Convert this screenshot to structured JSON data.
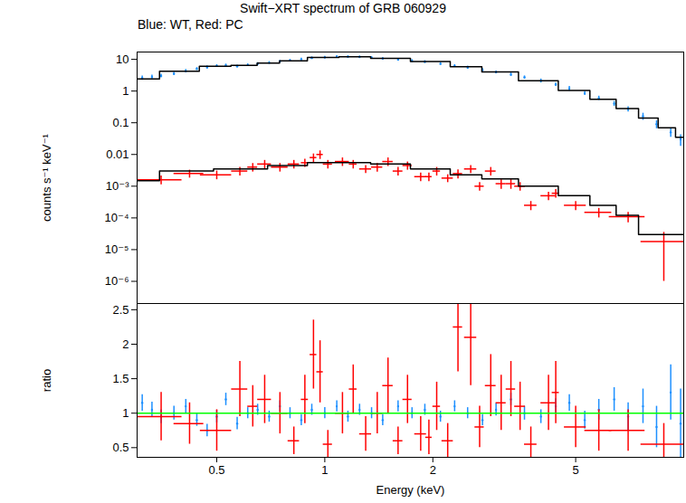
{
  "chart_data": [
    {
      "type": "scatter",
      "title": "Swift−XRT spectrum of GRB 060929",
      "subtitle": "Blue: WT, Red: PC",
      "y_label": "counts s⁻¹ keV⁻¹",
      "log": true,
      "grid": false,
      "tick_labels": "y",
      "xlim": [
        0.3,
        10
      ],
      "ylim": [
        2e-07,
        17
      ],
      "xticks": [
        0.5,
        1,
        2,
        5
      ],
      "yticks": [
        {
          "value": 1e-06,
          "label": "10⁻⁶"
        },
        {
          "value": 1e-05,
          "label": "10⁻⁵"
        },
        {
          "value": 0.0001,
          "label": "10⁻⁴"
        },
        {
          "value": 0.001,
          "label": "10⁻³"
        },
        0.01,
        0.1,
        1,
        10
      ],
      "series": [
        {
          "name": "WT",
          "color": "#1e90ff",
          "marker": "point",
          "x": [
            0.31,
            0.33,
            0.35,
            0.38,
            0.41,
            0.44,
            0.47,
            0.5,
            0.53,
            0.57,
            0.61,
            0.65,
            0.7,
            0.75,
            0.8,
            0.86,
            0.92,
            1.0,
            1.08,
            1.16,
            1.25,
            1.35,
            1.45,
            1.6,
            1.75,
            1.9,
            2.1,
            2.3,
            2.5,
            2.75,
            3.0,
            3.3,
            3.6,
            4.0,
            4.4,
            4.8,
            5.3,
            5.8,
            6.4,
            7.0,
            7.7,
            8.4,
            9.2,
            9.8
          ],
          "values": [
            2.6,
            2.8,
            3.0,
            3.5,
            4.3,
            5.0,
            5.6,
            6.2,
            6.5,
            6.0,
            6.6,
            7.2,
            7.8,
            8.5,
            9.2,
            10,
            11,
            11.5,
            12,
            12,
            11.8,
            11.2,
            10.5,
            9.8,
            9.0,
            8.3,
            7.2,
            6.2,
            5.5,
            4.6,
            3.9,
            3.3,
            2.7,
            2.1,
            1.6,
            1.2,
            0.85,
            0.6,
            0.4,
            0.27,
            0.16,
            0.09,
            0.05,
            0.03
          ],
          "yerr": [
            0.4,
            0.4,
            0.4,
            0.4,
            0.5,
            0.5,
            0.6,
            0.6,
            0.6,
            0.6,
            0.6,
            0.7,
            0.7,
            0.8,
            0.8,
            0.9,
            1,
            1,
            1,
            1,
            1,
            1,
            1,
            0.9,
            0.8,
            0.8,
            0.7,
            0.6,
            0.6,
            0.5,
            0.4,
            0.4,
            0.3,
            0.3,
            0.2,
            0.2,
            0.12,
            0.09,
            0.07,
            0.05,
            0.04,
            0.025,
            0.015,
            0.012
          ]
        },
        {
          "type": "line",
          "color": "#000000",
          "x": [
            0.3,
            0.4,
            0.5,
            0.6,
            0.7,
            0.8,
            1,
            1.2,
            1.5,
            2,
            2.5,
            3,
            4,
            5,
            6,
            7,
            8,
            9,
            10
          ],
          "values": [
            2.4,
            4.2,
            6.0,
            6.5,
            7.6,
            9.0,
            11.5,
            12,
            10.8,
            8.5,
            5.8,
            4.0,
            2.1,
            1.05,
            0.55,
            0.28,
            0.14,
            0.07,
            0.035
          ]
        },
        {
          "name": "PC",
          "color": "#ff0000",
          "marker": "cross",
          "x": [
            0.35,
            0.42,
            0.5,
            0.58,
            0.63,
            0.68,
            0.75,
            0.82,
            0.88,
            0.93,
            0.97,
            1.02,
            1.12,
            1.2,
            1.3,
            1.4,
            1.5,
            1.6,
            1.7,
            1.85,
            1.95,
            2.05,
            2.2,
            2.35,
            2.55,
            2.7,
            2.9,
            3.1,
            3.3,
            3.5,
            3.75,
            4.2,
            4.4,
            5.0,
            5.8,
            7.0,
            8.8
          ],
          "xerr": [
            0.05,
            0.04,
            0.05,
            0.03,
            0.02,
            0.03,
            0.04,
            0.03,
            0.02,
            0.02,
            0.02,
            0.03,
            0.05,
            0.03,
            0.05,
            0.05,
            0.05,
            0.05,
            0.05,
            0.07,
            0.04,
            0.05,
            0.08,
            0.07,
            0.1,
            0.08,
            0.1,
            0.1,
            0.1,
            0.12,
            0.15,
            0.2,
            0.1,
            0.35,
            0.5,
            0.8,
            1.2
          ],
          "values": [
            0.0016,
            0.0025,
            0.0023,
            0.003,
            0.004,
            0.005,
            0.004,
            0.005,
            0.0055,
            0.008,
            0.01,
            0.005,
            0.006,
            0.005,
            0.0035,
            0.004,
            0.006,
            0.003,
            0.0045,
            0.002,
            0.002,
            0.003,
            0.0018,
            0.0025,
            0.0035,
            0.001,
            0.003,
            0.0012,
            0.0012,
            0.001,
            0.00025,
            0.0005,
            0.0006,
            0.00025,
            0.00015,
            0.00011,
            1.8e-05
          ],
          "yerr": [
            0.0005,
            0.0007,
            0.0007,
            0.0009,
            0.0012,
            0.0015,
            0.0012,
            0.0015,
            0.0016,
            0.0024,
            0.003,
            0.0015,
            0.0018,
            0.0015,
            0.001,
            0.0012,
            0.0018,
            0.0009,
            0.0013,
            0.0006,
            0.0006,
            0.0009,
            0.0005,
            0.0008,
            0.001,
            0.0003,
            0.0009,
            0.0004,
            0.0004,
            0.0003,
            8e-05,
            0.00015,
            0.00018,
            8e-05,
            5e-05,
            4e-05,
            1.7e-05
          ]
        },
        {
          "type": "line",
          "color": "#000000",
          "x": [
            0.3,
            0.4,
            0.6,
            0.8,
            1,
            1.2,
            1.5,
            2,
            2.5,
            3,
            4,
            5,
            6,
            7,
            8,
            10
          ],
          "values": [
            0.0015,
            0.003,
            0.0035,
            0.0045,
            0.0055,
            0.0055,
            0.005,
            0.0035,
            0.0023,
            0.0017,
            0.001,
            0.0005,
            0.00025,
            0.00012,
            3e-05,
            3e-05
          ]
        }
      ]
    },
    {
      "type": "scatter",
      "x_label": "Energy (keV)",
      "y_label": "ratio",
      "log": "x",
      "grid": false,
      "xlim": [
        0.3,
        10
      ],
      "ylim": [
        0.36,
        2.59
      ],
      "xticks": [
        0.5,
        1,
        2,
        5
      ],
      "yticks": [
        0.5,
        1,
        1.5,
        2,
        2.5
      ],
      "series": [
        {
          "name": "WT",
          "color": "#1e90ff",
          "marker": "point",
          "x": [
            0.31,
            0.33,
            0.35,
            0.38,
            0.41,
            0.44,
            0.47,
            0.5,
            0.53,
            0.57,
            0.61,
            0.65,
            0.7,
            0.75,
            0.8,
            0.86,
            0.92,
            1.0,
            1.08,
            1.16,
            1.25,
            1.35,
            1.45,
            1.6,
            1.75,
            1.9,
            2.1,
            2.3,
            2.5,
            2.75,
            3.0,
            3.3,
            3.6,
            4.0,
            4.4,
            4.8,
            5.3,
            5.8,
            6.4,
            7.0,
            7.7,
            8.4,
            9.2,
            9.8
          ],
          "values": [
            1.15,
            1.05,
            0.95,
            1.0,
            1.1,
            0.9,
            0.75,
            0.95,
            1.2,
            0.85,
            1.0,
            1.05,
            0.95,
            1.1,
            1.0,
            0.9,
            1.05,
            1.0,
            1.1,
            0.95,
            1.05,
            1.0,
            0.9,
            1.1,
            1.0,
            1.05,
            0.95,
            1.1,
            1.0,
            0.9,
            1.05,
            1.2,
            1.0,
            0.95,
            1.1,
            1.15,
            0.9,
            1.05,
            1.2,
            0.95,
            1.1,
            0.8,
            1.3,
            0.85
          ],
          "yerr": [
            0.12,
            0.11,
            0.1,
            0.1,
            0.1,
            0.09,
            0.09,
            0.09,
            0.09,
            0.09,
            0.08,
            0.08,
            0.08,
            0.08,
            0.08,
            0.08,
            0.08,
            0.08,
            0.08,
            0.08,
            0.08,
            0.08,
            0.08,
            0.08,
            0.08,
            0.08,
            0.08,
            0.08,
            0.08,
            0.08,
            0.09,
            0.09,
            0.1,
            0.1,
            0.11,
            0.12,
            0.13,
            0.15,
            0.17,
            0.2,
            0.25,
            0.3,
            0.4,
            0.5
          ]
        },
        {
          "name": "PC",
          "color": "#ff0000",
          "marker": "cross",
          "x": [
            0.35,
            0.42,
            0.5,
            0.58,
            0.63,
            0.68,
            0.75,
            0.82,
            0.88,
            0.93,
            0.97,
            1.02,
            1.12,
            1.2,
            1.3,
            1.4,
            1.5,
            1.6,
            1.7,
            1.85,
            1.95,
            2.05,
            2.2,
            2.35,
            2.55,
            2.7,
            2.9,
            3.1,
            3.3,
            3.5,
            3.75,
            4.2,
            4.4,
            5.0,
            5.8,
            7.0,
            8.8
          ],
          "xerr": [
            0.05,
            0.04,
            0.05,
            0.03,
            0.02,
            0.03,
            0.04,
            0.03,
            0.02,
            0.02,
            0.02,
            0.03,
            0.05,
            0.03,
            0.05,
            0.05,
            0.05,
            0.05,
            0.05,
            0.07,
            0.04,
            0.05,
            0.08,
            0.07,
            0.1,
            0.08,
            0.1,
            0.1,
            0.1,
            0.12,
            0.15,
            0.2,
            0.1,
            0.35,
            0.5,
            0.8,
            1.2
          ],
          "values": [
            0.95,
            0.85,
            0.75,
            1.35,
            1.1,
            1.2,
            1.0,
            0.6,
            1.2,
            1.85,
            1.6,
            0.55,
            1.0,
            1.35,
            0.7,
            1.0,
            1.4,
            0.6,
            1.2,
            0.7,
            0.65,
            1.1,
            0.6,
            2.25,
            2.1,
            0.8,
            1.4,
            1.15,
            1.35,
            1.1,
            0.55,
            1.15,
            1.3,
            0.8,
            0.75,
            0.75,
            0.55
          ],
          "yerr": [
            0.35,
            0.3,
            0.3,
            0.4,
            0.3,
            0.35,
            0.3,
            0.2,
            0.35,
            0.5,
            0.45,
            0.2,
            0.3,
            0.35,
            0.25,
            0.3,
            0.4,
            0.2,
            0.35,
            0.25,
            0.25,
            0.35,
            0.25,
            0.65,
            0.7,
            0.3,
            0.45,
            0.4,
            0.4,
            0.35,
            0.25,
            0.4,
            0.45,
            0.3,
            0.3,
            0.3,
            0.3
          ]
        },
        {
          "type": "line",
          "color": "#00ff00",
          "x": [
            0.3,
            10
          ],
          "values": [
            1,
            1
          ]
        }
      ]
    }
  ]
}
